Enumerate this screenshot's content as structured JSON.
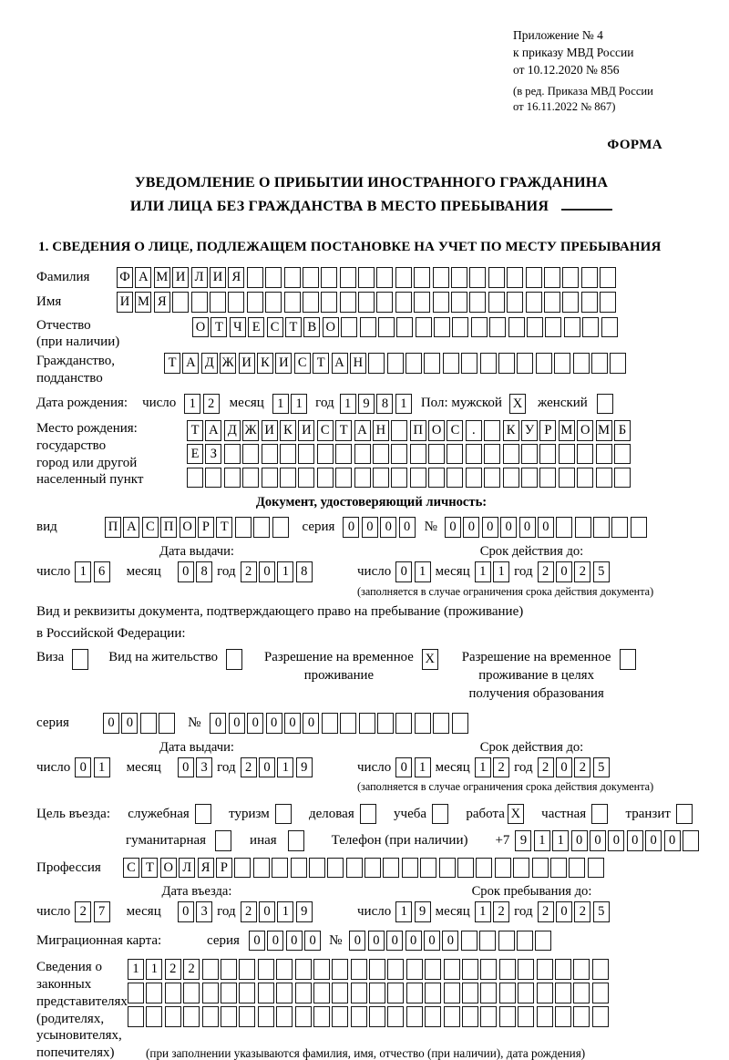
{
  "accent_colors": {
    "ink": "#000000",
    "paper": "#ffffff"
  },
  "header": {
    "lines": [
      "Приложение № 4",
      "к приказу МВД России",
      "от 10.12.2020 № 856"
    ],
    "sub_lines": [
      "(в ред. Приказа МВД России",
      "от 16.11.2022 № 867)"
    ],
    "form_label": "ФОРМА"
  },
  "title": {
    "line1": "УВЕДОМЛЕНИЕ О ПРИБЫТИИ ИНОСТРАННОГО ГРАЖДАНИНА",
    "line2": "ИЛИ ЛИЦА БЕЗ ГРАЖДАНСТВА В МЕСТО ПРЕБЫВАНИЯ"
  },
  "section1_title": "1. СВЕДЕНИЯ О ЛИЦЕ, ПОДЛЕЖАЩЕМ ПОСТАНОВКЕ НА УЧЕТ ПО МЕСТУ ПРЕБЫВАНИЯ",
  "labels": {
    "surname": "Фамилия",
    "name": "Имя",
    "patronymic_1": "Отчество",
    "patronymic_2": "(при наличии)",
    "citizenship_1": "Гражданство,",
    "citizenship_2": "подданство",
    "birthdate": "Дата рождения:",
    "day": "число",
    "month": "месяц",
    "year": "год",
    "sex_male": "Пол: мужской",
    "sex_female": "женский",
    "birthplace_1": "Место рождения:",
    "birthplace_2": "государство",
    "birthplace_3": "город или другой",
    "birthplace_4": "населенный пункт",
    "doc_header": "Документ, удостоверяющий личность:",
    "kind": "вид",
    "series": "серия",
    "number": "№",
    "issue_date": "Дата выдачи:",
    "valid_until": "Срок действия до:",
    "valid_note": "(заполняется в случае ограничения срока действия документа)",
    "resid_doc_1": "Вид и реквизиты документа, подтверждающего право на пребывание (проживание)",
    "resid_doc_2": "в Российской Федерации:",
    "visa": "Виза",
    "residence_permit": "Вид на жительство",
    "temp_permit_1": "Разрешение на временное",
    "temp_permit_2": "проживание",
    "temp_edu_1": "Разрешение на временное",
    "temp_edu_2": "проживание в целях",
    "temp_edu_3": "получения образования",
    "phone": "Телефон (при наличии)",
    "phone_prefix": "+7",
    "profession": "Профессия",
    "entry_date": "Дата въезда:",
    "stay_until": "Срок пребывания до:",
    "migration_card": "Миграционная карта:",
    "rep_1": "Сведения о",
    "rep_2": "законных",
    "rep_3": "представителях",
    "rep_4": "(родителях,",
    "rep_5": "усыновителях,",
    "rep_6": "попечителях)",
    "rep_note": "(при заполнении указываются фамилия, имя, отчество (при наличии), дата рождения)"
  },
  "fields": {
    "surname": {
      "value": "ФАМИЛИЯ",
      "count": 27
    },
    "name": {
      "value": "ИМЯ",
      "count": 27
    },
    "patronymic": {
      "value": "ОТЧЕСТВО",
      "count": 23
    },
    "citizenship": {
      "value": "ТАДЖИКИСТАН",
      "count": 25
    },
    "birth_day": {
      "value": "12",
      "count": 2
    },
    "birth_month": {
      "value": "11",
      "count": 2
    },
    "birth_year": {
      "value": "1981",
      "count": 4
    },
    "sex_male": {
      "value": "X",
      "count": 1
    },
    "sex_female": {
      "value": "",
      "count": 1
    },
    "birthplace_1": {
      "value": "ТАДЖИКИСТАН ПОС. КУРМОМБ",
      "count": 24
    },
    "birthplace_2": {
      "value": "ЕЗ",
      "count": 24
    },
    "birthplace_3": {
      "value": "",
      "count": 24
    },
    "doc_kind": {
      "value": "ПАСПОРТ",
      "count": 10
    },
    "doc_series": {
      "value": "0000",
      "count": 4
    },
    "doc_number": {
      "value": "000000",
      "count": 11
    },
    "doc_issue_day": {
      "value": "16",
      "count": 2
    },
    "doc_issue_month": {
      "value": "08",
      "count": 2
    },
    "doc_issue_year": {
      "value": "2018",
      "count": 4
    },
    "doc_valid_day": {
      "value": "01",
      "count": 2
    },
    "doc_valid_month": {
      "value": "11",
      "count": 2
    },
    "doc_valid_year": {
      "value": "2025",
      "count": 4
    },
    "cb_visa": {
      "value": "",
      "count": 1
    },
    "cb_residence_permit": {
      "value": "",
      "count": 1
    },
    "cb_temp_permit": {
      "value": "X",
      "count": 1
    },
    "cb_temp_edu": {
      "value": "",
      "count": 1
    },
    "permit_series": {
      "value": "00",
      "count": 4
    },
    "permit_number": {
      "value": "000000",
      "count": 14
    },
    "permit_issue_day": {
      "value": "01",
      "count": 2
    },
    "permit_issue_month": {
      "value": "03",
      "count": 2
    },
    "permit_issue_year": {
      "value": "2019",
      "count": 4
    },
    "permit_valid_day": {
      "value": "01",
      "count": 2
    },
    "permit_valid_month": {
      "value": "12",
      "count": 2
    },
    "permit_valid_year": {
      "value": "2025",
      "count": 4
    },
    "phone": {
      "value": "911000000",
      "count": 10
    },
    "profession": {
      "value": "СТОЛЯР",
      "count": 26
    },
    "entry_day": {
      "value": "27",
      "count": 2
    },
    "entry_month": {
      "value": "03",
      "count": 2
    },
    "entry_year": {
      "value": "2019",
      "count": 4
    },
    "stay_day": {
      "value": "19",
      "count": 2
    },
    "stay_month": {
      "value": "12",
      "count": 2
    },
    "stay_year": {
      "value": "2025",
      "count": 4
    },
    "mig_series": {
      "value": "0000",
      "count": 4
    },
    "mig_number": {
      "value": "000000",
      "count": 11
    },
    "rep_row1": {
      "value": "1122",
      "count": 26
    },
    "rep_row2": {
      "value": "",
      "count": 26
    },
    "rep_row3": {
      "value": "",
      "count": 26
    }
  },
  "purpose": {
    "label": "Цель въезда:",
    "options": [
      {
        "label": "служебная",
        "box": {
          "value": "",
          "count": 1
        }
      },
      {
        "label": "туризм",
        "box": {
          "value": "",
          "count": 1
        }
      },
      {
        "label": "деловая",
        "box": {
          "value": "",
          "count": 1
        }
      },
      {
        "label": "учеба",
        "box": {
          "value": "",
          "count": 1
        }
      },
      {
        "label": "работа",
        "box": {
          "value": "X",
          "count": 1
        }
      },
      {
        "label": "частная",
        "box": {
          "value": "",
          "count": 1
        }
      },
      {
        "label": "транзит",
        "box": {
          "value": "",
          "count": 1
        }
      },
      {
        "label": "гуманитарная",
        "box": {
          "value": "",
          "count": 1
        }
      },
      {
        "label": "иная",
        "box": {
          "value": "",
          "count": 1
        }
      }
    ]
  }
}
